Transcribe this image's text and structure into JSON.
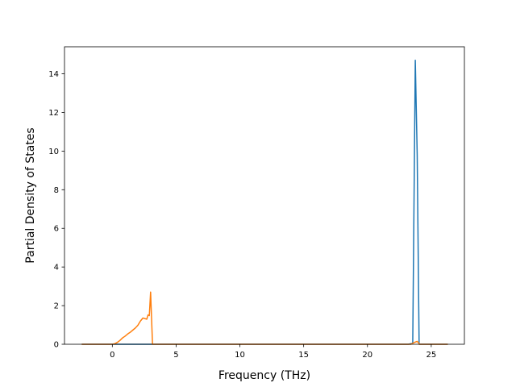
{
  "chart_data": {
    "type": "line",
    "title": "",
    "xlabel": "Frequency (THz)",
    "ylabel": "Partial Density of States",
    "xlim": [
      -3.75,
      27.6
    ],
    "ylim": [
      0,
      15.4
    ],
    "xticks": [
      0,
      5,
      10,
      15,
      20,
      25
    ],
    "yticks": [
      0,
      2,
      4,
      6,
      8,
      10,
      12,
      14
    ],
    "xtick_labels": [
      "0",
      "5",
      "10",
      "15",
      "20",
      "25"
    ],
    "ytick_labels": [
      "0",
      "2",
      "4",
      "6",
      "8",
      "10",
      "12",
      "14"
    ],
    "grid": false,
    "legend": "none",
    "series": [
      {
        "color": "#1f77b4",
        "x": [
          -2.4,
          23.2,
          23.55,
          23.75,
          23.9,
          24.05,
          24.3,
          26.3
        ],
        "y": [
          0,
          0,
          0.05,
          14.7,
          9.8,
          0,
          0,
          0
        ]
      },
      {
        "color": "#ff7f0e",
        "x": [
          -2.4,
          0.0,
          0.2,
          0.4,
          0.6,
          0.8,
          1.0,
          1.2,
          1.4,
          1.6,
          1.8,
          2.0,
          2.2,
          2.4,
          2.6,
          2.7,
          2.8,
          2.9,
          3.0,
          3.15,
          23.4,
          23.7,
          23.9,
          24.1,
          26.3
        ],
        "y": [
          0,
          0,
          0.03,
          0.1,
          0.2,
          0.33,
          0.42,
          0.53,
          0.62,
          0.73,
          0.84,
          0.98,
          1.2,
          1.36,
          1.32,
          1.3,
          1.52,
          1.48,
          2.7,
          0.0,
          0,
          0.1,
          0.15,
          0,
          0
        ]
      }
    ]
  }
}
